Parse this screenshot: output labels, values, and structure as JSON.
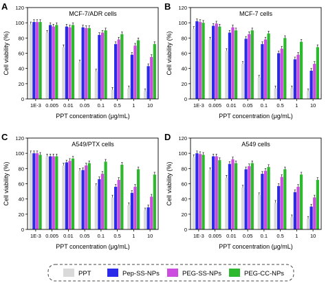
{
  "colors": {
    "PPT": "#d9d9d9",
    "Pep-SS-NPs": "#2a2ae8",
    "PEG-SS-NPs": "#cc4ce0",
    "PEG-CC-NPs": "#2db92d"
  },
  "legend": [
    "PPT",
    "Pep-SS-NPs",
    "PEG-SS-NPs",
    "PEG-CC-NPs"
  ],
  "chart_data": [
    {
      "type": "bar",
      "panel_letter": "A",
      "title": "MCF-7/ADR cells",
      "xlabel": "PPT concentration (μg/mL)",
      "ylabel": "Cell viability (%)",
      "ylim": [
        0,
        120
      ],
      "yticks": [
        0,
        20,
        40,
        60,
        80,
        100,
        120
      ],
      "categories": [
        "1E-3",
        "0.005",
        "0.01",
        "0.05",
        "0.1",
        "0.5",
        "1",
        "10"
      ],
      "series": [
        {
          "name": "PPT",
          "values": [
            98,
            87,
            68,
            48,
            36,
            12,
            14,
            10
          ]
        },
        {
          "name": "Pep-SS-NPs",
          "values": [
            101,
            97,
            95,
            94,
            84,
            72,
            58,
            43
          ]
        },
        {
          "name": "PEG-SS-NPs",
          "values": [
            101,
            95,
            94,
            93,
            87,
            78,
            70,
            55
          ]
        },
        {
          "name": "PEG-CC-NPs",
          "values": [
            101,
            97,
            97,
            93,
            90,
            85,
            77,
            72
          ]
        }
      ]
    },
    {
      "type": "bar",
      "panel_letter": "B",
      "title": "MCF-7 cells",
      "xlabel": "PPT concentration (μg/mL)",
      "ylabel": "Cell viability (%)",
      "ylim": [
        0,
        120
      ],
      "yticks": [
        0,
        20,
        40,
        60,
        80,
        100,
        120
      ],
      "categories": [
        "1E-3",
        "0.005",
        "0.01",
        "0.05",
        "0.1",
        "0.5",
        "1",
        "10"
      ],
      "series": [
        {
          "name": "PPT",
          "values": [
            92,
            78,
            63,
            46,
            28,
            14,
            14,
            10
          ]
        },
        {
          "name": "Pep-SS-NPs",
          "values": [
            102,
            96,
            87,
            79,
            72,
            60,
            52,
            37
          ]
        },
        {
          "name": "PEG-SS-NPs",
          "values": [
            101,
            99,
            94,
            85,
            78,
            66,
            58,
            46
          ]
        },
        {
          "name": "PEG-CC-NPs",
          "values": [
            100,
            95,
            90,
            90,
            86,
            80,
            75,
            68
          ]
        }
      ]
    },
    {
      "type": "bar",
      "panel_letter": "C",
      "title": "A549/PTX cells",
      "xlabel": "PPT concentration (μg/mL)",
      "ylabel": "Cell viability (%)",
      "ylim": [
        0,
        120
      ],
      "yticks": [
        0,
        20,
        40,
        60,
        80,
        100,
        120
      ],
      "categories": [
        "1E-3",
        "0.005",
        "0.01",
        "0.05",
        "0.1",
        "0.5",
        "1",
        "10"
      ],
      "series": [
        {
          "name": "PPT",
          "values": [
            100,
            96,
            84,
            77,
            57,
            42,
            32,
            25
          ]
        },
        {
          "name": "Pep-SS-NPs",
          "values": [
            100,
            96,
            88,
            78,
            66,
            56,
            48,
            29
          ]
        },
        {
          "name": "PEG-SS-NPs",
          "values": [
            100,
            96,
            90,
            84,
            73,
            65,
            56,
            43
          ]
        },
        {
          "name": "PEG-CC-NPs",
          "values": [
            98,
            96,
            93,
            87,
            89,
            85,
            79,
            72
          ]
        }
      ]
    },
    {
      "type": "bar",
      "panel_letter": "D",
      "title": "A549 cells",
      "xlabel": "PPT concentration (μg/mL)",
      "ylabel": "Cell viability (%)",
      "ylim": [
        0,
        120
      ],
      "yticks": [
        0,
        20,
        40,
        60,
        80,
        100,
        120
      ],
      "categories": [
        "1E-3",
        "0.005",
        "0.01",
        "0.05",
        "0.1",
        "0.5",
        "1",
        "10"
      ],
      "series": [
        {
          "name": "PPT",
          "values": [
            95,
            78,
            68,
            55,
            45,
            35,
            16,
            14
          ]
        },
        {
          "name": "Pep-SS-NPs",
          "values": [
            100,
            96,
            86,
            79,
            73,
            57,
            49,
            30
          ]
        },
        {
          "name": "PEG-SS-NPs",
          "values": [
            99,
            96,
            92,
            83,
            77,
            69,
            56,
            42
          ]
        },
        {
          "name": "PEG-CC-NPs",
          "values": [
            98,
            91,
            87,
            87,
            82,
            79,
            72,
            65
          ]
        }
      ]
    }
  ]
}
